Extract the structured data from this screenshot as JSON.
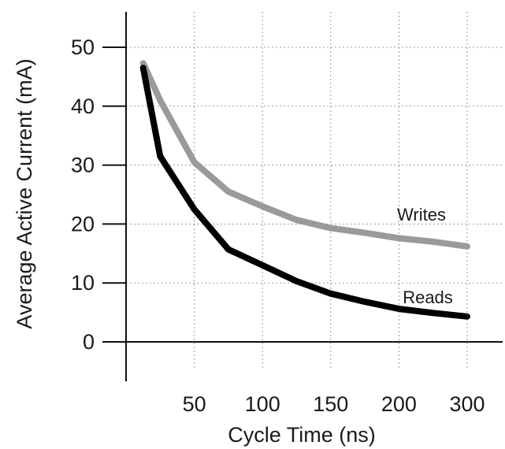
{
  "chart_data": {
    "type": "line",
    "xlabel": "Cycle Time (ns)",
    "ylabel": "Average Active Current (mA)",
    "x_tick_labels": [
      "50",
      "100",
      "150",
      "200",
      "300"
    ],
    "y_ticks": [
      0,
      10,
      20,
      30,
      40,
      50
    ],
    "ylim": [
      0,
      55
    ],
    "grid": true,
    "series": [
      {
        "name": "Writes",
        "color": "#9a9a9a",
        "x_positions": [
          0.25,
          0.5,
          1.0,
          1.5,
          2.0,
          2.5,
          3.0,
          3.5,
          4.0,
          4.5,
          5.0
        ],
        "values": [
          47.3,
          41.0,
          30.5,
          25.5,
          23.0,
          20.7,
          19.3,
          18.5,
          17.6,
          17.0,
          16.2
        ]
      },
      {
        "name": "Reads",
        "color": "#000000",
        "x_positions": [
          0.25,
          0.5,
          1.0,
          1.5,
          2.0,
          2.5,
          3.0,
          3.5,
          4.0,
          4.5,
          5.0
        ],
        "values": [
          46.5,
          31.5,
          22.5,
          15.7,
          13.0,
          10.3,
          8.2,
          6.8,
          5.6,
          4.9,
          4.3
        ]
      }
    ]
  }
}
